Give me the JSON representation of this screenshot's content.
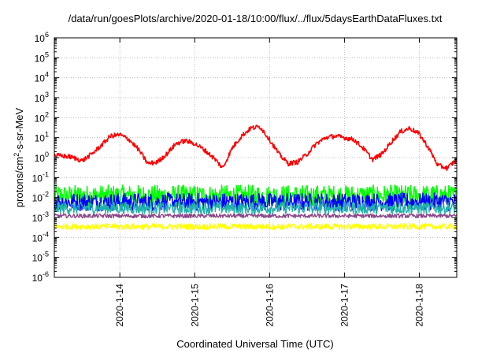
{
  "chart_data": {
    "type": "line",
    "title": "/data/run/goesPlots/archive/2020-01-18/10:00/flux/../flux/5daysEarthDataFluxes.txt",
    "xlabel": "Coordinated Universal Time (UTC)",
    "ylabel": {
      "base": "protons/cm",
      "sup": "2",
      "rest": "-s-sr-MeV"
    },
    "x_scale": "time",
    "xlim": [
      "2020-01-13T03:00",
      "2020-01-18T12:00"
    ],
    "x_ticks": [
      "2020-1-14",
      "2020-1-15",
      "2020-1-16",
      "2020-1-17",
      "2020-1-18"
    ],
    "y_scale": "log",
    "ylim": [
      1e-06,
      1000000.0
    ],
    "y_ticks": [
      {
        "base": "10",
        "exp": "-6",
        "value": 1e-06
      },
      {
        "base": "10",
        "exp": "-5",
        "value": 1e-05
      },
      {
        "base": "10",
        "exp": "-4",
        "value": 0.0001
      },
      {
        "base": "10",
        "exp": "-3",
        "value": 0.001
      },
      {
        "base": "10",
        "exp": "-2",
        "value": 0.01
      },
      {
        "base": "10",
        "exp": "-1",
        "value": 0.1
      },
      {
        "base": "10",
        "exp": "0",
        "value": 1
      },
      {
        "base": "10",
        "exp": "1",
        "value": 10
      },
      {
        "base": "10",
        "exp": "2",
        "value": 100
      },
      {
        "base": "10",
        "exp": "3",
        "value": 1000
      },
      {
        "base": "10",
        "exp": "4",
        "value": 10000
      },
      {
        "base": "10",
        "exp": "5",
        "value": 100000
      },
      {
        "base": "10",
        "exp": "6",
        "value": 1000000
      }
    ],
    "grid": true,
    "legend": "none",
    "series": [
      {
        "color": "#ff0000",
        "noise": 0.12,
        "points": [
          [
            "2020-01-13T03:00",
            1.3
          ],
          [
            "2020-01-13T08:00",
            1.1
          ],
          [
            "2020-01-13T12:00",
            0.7
          ],
          [
            "2020-01-13T15:00",
            1.5
          ],
          [
            "2020-01-13T18:00",
            4
          ],
          [
            "2020-01-13T21:00",
            12
          ],
          [
            "2020-01-14T00:00",
            14
          ],
          [
            "2020-01-14T03:00",
            8
          ],
          [
            "2020-01-14T06:00",
            2.5
          ],
          [
            "2020-01-14T09:00",
            0.5
          ],
          [
            "2020-01-14T12:00",
            0.6
          ],
          [
            "2020-01-14T15:00",
            1.5
          ],
          [
            "2020-01-14T18:00",
            5
          ],
          [
            "2020-01-14T21:00",
            7
          ],
          [
            "2020-01-15T00:00",
            5
          ],
          [
            "2020-01-15T03:00",
            2.5
          ],
          [
            "2020-01-15T06:00",
            1
          ],
          [
            "2020-01-15T09:00",
            0.3
          ],
          [
            "2020-01-15T12:00",
            3
          ],
          [
            "2020-01-15T15:00",
            12
          ],
          [
            "2020-01-15T18:00",
            30
          ],
          [
            "2020-01-15T21:00",
            35
          ],
          [
            "2020-01-16T00:00",
            8
          ],
          [
            "2020-01-16T03:00",
            1.5
          ],
          [
            "2020-01-16T06:00",
            0.5
          ],
          [
            "2020-01-16T09:00",
            0.6
          ],
          [
            "2020-01-16T12:00",
            1.5
          ],
          [
            "2020-01-16T15:00",
            5
          ],
          [
            "2020-01-16T18:00",
            10
          ],
          [
            "2020-01-16T21:00",
            12
          ],
          [
            "2020-01-17T00:00",
            10
          ],
          [
            "2020-01-17T03:00",
            8
          ],
          [
            "2020-01-17T06:00",
            3
          ],
          [
            "2020-01-17T09:00",
            0.8
          ],
          [
            "2020-01-17T12:00",
            1.5
          ],
          [
            "2020-01-17T15:00",
            6
          ],
          [
            "2020-01-17T18:00",
            20
          ],
          [
            "2020-01-17T21:00",
            30
          ],
          [
            "2020-01-18T00:00",
            15
          ],
          [
            "2020-01-18T03:00",
            3
          ],
          [
            "2020-01-18T06:00",
            0.4
          ],
          [
            "2020-01-18T09:00",
            0.3
          ],
          [
            "2020-01-18T12:00",
            0.8
          ]
        ]
      },
      {
        "color": "#00ff00",
        "level": 0.012,
        "noise": 0.55,
        "points": []
      },
      {
        "color": "#0000ff",
        "level": 0.006,
        "noise": 0.45,
        "points": []
      },
      {
        "color": "#20b2aa",
        "level": 0.003,
        "noise": 0.3,
        "points": []
      },
      {
        "color": "#8b4789",
        "level": 0.0012,
        "noise": 0.1,
        "points": []
      },
      {
        "color": "#ffff00",
        "level": 0.00035,
        "noise": 0.15,
        "points": []
      }
    ]
  }
}
